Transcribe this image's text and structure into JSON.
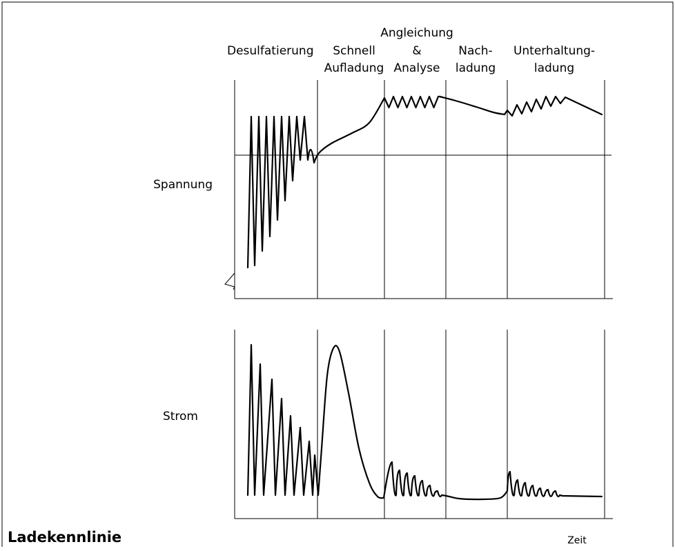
{
  "diagram": {
    "title": "Ladekennlinie",
    "phases": [
      {
        "lines": [
          "Desulfatierung"
        ]
      },
      {
        "lines": [
          "Schnell",
          "Aufladung"
        ]
      },
      {
        "lines": [
          "Angleichung",
          "&",
          "Analyse"
        ]
      },
      {
        "lines": [
          "Nach-",
          "ladung"
        ]
      },
      {
        "lines": [
          "Unterhaltung-",
          "ladung"
        ]
      }
    ],
    "y_labels": {
      "voltage": "Spannung",
      "current": "Strom"
    },
    "x_label": "Zeit",
    "colors": {
      "line": "#000000",
      "background": "#ffffff"
    }
  }
}
